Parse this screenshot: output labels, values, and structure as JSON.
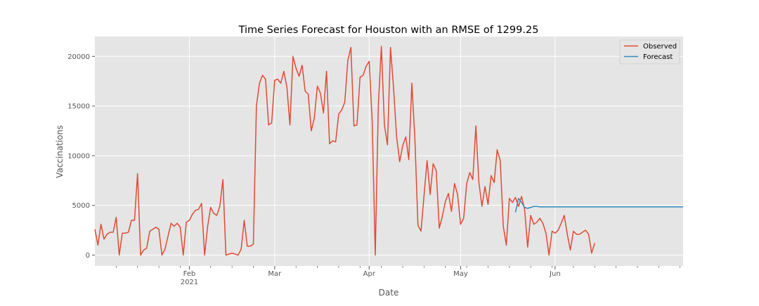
{
  "chart_data": {
    "type": "line",
    "title": "Time Series Forecast for Houston with an RMSE of 1299.25",
    "xlabel": "Date",
    "ylabel": "Vaccinations",
    "x_range": [
      "2021-01-01",
      "2021-07-13"
    ],
    "ylim": [
      -1100,
      22000
    ],
    "grid": true,
    "legend_position": "top-right",
    "y_ticks": [
      0,
      5000,
      10000,
      15000,
      20000
    ],
    "x_ticks": [
      {
        "date": "2021-02-01",
        "label": "Feb",
        "sublabel": "2021"
      },
      {
        "date": "2021-03-01",
        "label": "Mar",
        "sublabel": ""
      },
      {
        "date": "2021-04-01",
        "label": "Apr",
        "sublabel": ""
      },
      {
        "date": "2021-05-01",
        "label": "May",
        "sublabel": ""
      },
      {
        "date": "2021-06-01",
        "label": "Jun",
        "sublabel": ""
      }
    ],
    "minor_tick_dates": [
      "2021-01-08",
      "2021-01-15",
      "2021-01-22",
      "2021-01-29",
      "2021-02-08",
      "2021-02-15",
      "2021-02-22",
      "2021-03-08",
      "2021-03-15",
      "2021-03-22",
      "2021-03-29",
      "2021-04-05",
      "2021-04-12",
      "2021-04-19",
      "2021-04-26",
      "2021-05-03",
      "2021-05-10",
      "2021-05-17",
      "2021-05-24",
      "2021-05-31",
      "2021-06-07",
      "2021-06-14",
      "2021-06-21",
      "2021-06-28",
      "2021-07-05",
      "2021-07-12"
    ],
    "series": [
      {
        "name": "Observed",
        "color": "#e24a33",
        "start_date": "2021-01-01",
        "values": [
          2600,
          1000,
          3100,
          1600,
          2100,
          2300,
          2300,
          3800,
          0,
          2200,
          2200,
          2300,
          3500,
          3500,
          8200,
          0,
          500,
          700,
          2400,
          2600,
          2800,
          2600,
          0,
          600,
          1900,
          3200,
          2900,
          3200,
          2800,
          0,
          3300,
          3500,
          4100,
          4500,
          4600,
          5200,
          0,
          2900,
          4800,
          4200,
          4000,
          4900,
          7600,
          0,
          100,
          200,
          100,
          0,
          600,
          3500,
          900,
          900,
          1100,
          15000,
          17300,
          18100,
          17700,
          13100,
          13300,
          17600,
          17700,
          17300,
          18500,
          16900,
          13100,
          20000,
          18800,
          18000,
          19100,
          16500,
          16200,
          12500,
          13800,
          17000,
          16300,
          14300,
          18500,
          11200,
          11500,
          11400,
          14200,
          14600,
          15400,
          19600,
          20900,
          13000,
          13100,
          17900,
          18100,
          19000,
          19500,
          13400,
          0,
          15000,
          21000,
          13100,
          11100,
          20900,
          16800,
          11900,
          9400,
          11000,
          11900,
          9600,
          17300,
          11700,
          3000,
          2400,
          6000,
          9500,
          6100,
          9200,
          8500,
          2700,
          3900,
          5400,
          6200,
          4400,
          7200,
          6100,
          3100,
          3700,
          7200,
          8300,
          7600,
          13000,
          7300,
          4900,
          6900,
          5100,
          8000,
          7300,
          10600,
          9500,
          2900,
          1000,
          5700,
          5300,
          5800,
          4900,
          5900,
          4600,
          800,
          4000,
          3100,
          3300,
          3700,
          3200,
          2200,
          0,
          2400,
          2200,
          2500,
          3200,
          4000,
          2100,
          500,
          2400,
          2100,
          2100,
          2300,
          2500,
          2100,
          200,
          1200
        ]
      },
      {
        "name": "Forecast",
        "color": "#348abd",
        "start_date": "2021-05-19",
        "values": [
          4300,
          5700,
          5300,
          4800,
          4700,
          4800,
          4900,
          4900,
          4850,
          4850,
          4850,
          4850,
          4850,
          4850,
          4850,
          4850,
          4850,
          4850,
          4850,
          4850,
          4850,
          4850,
          4850,
          4850,
          4850,
          4850,
          4850,
          4850,
          4850,
          4850,
          4850,
          4850,
          4850,
          4850,
          4850,
          4850,
          4850,
          4850,
          4850,
          4850,
          4850,
          4850,
          4850,
          4850,
          4850,
          4850,
          4850,
          4850,
          4850,
          4850,
          4850,
          4850,
          4850,
          4850,
          4850,
          4850
        ]
      }
    ]
  }
}
